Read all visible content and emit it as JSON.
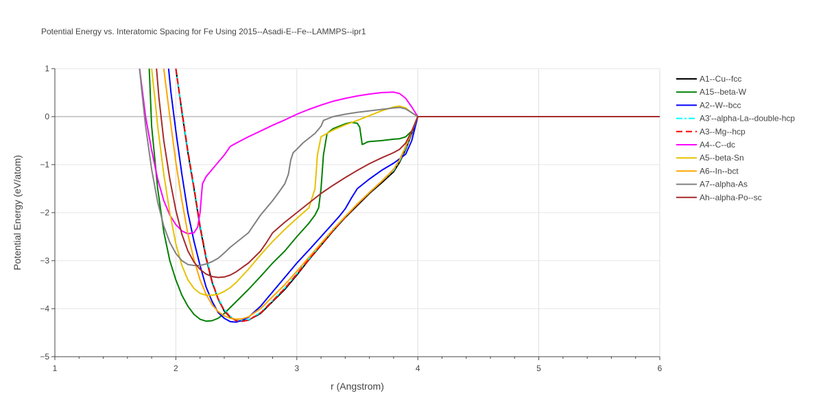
{
  "chart_data": {
    "type": "line",
    "title": "Potential Energy vs. Interatomic Spacing for Fe Using 2015--Asadi-E--Fe--LAMMPS--ipr1",
    "xlabel": "r (Angstrom)",
    "ylabel": "Potential Energy (eV/atom)",
    "xlim": [
      1,
      6
    ],
    "ylim": [
      -5,
      1
    ],
    "xticks": [
      1,
      2,
      3,
      4,
      5,
      6
    ],
    "yticks": [
      1,
      0,
      -1,
      -2,
      -3,
      -4,
      -5
    ],
    "xtick_labels": [
      "1",
      "2",
      "3",
      "4",
      "5",
      "6"
    ],
    "ytick_labels": [
      "1",
      "0",
      "−1",
      "−2",
      "−3",
      "−4",
      "−5"
    ],
    "grid": true,
    "legend_position": "right",
    "series": [
      {
        "name": "A1--Cu--fcc",
        "color": "#000000",
        "dash": "solid",
        "x": [
          2.0,
          2.05,
          2.1,
          2.15,
          2.2,
          2.25,
          2.3,
          2.35,
          2.4,
          2.45,
          2.5,
          2.55,
          2.6,
          2.7,
          2.8,
          2.9,
          3.0,
          3.1,
          3.2,
          3.3,
          3.4,
          3.5,
          3.6,
          3.7,
          3.8,
          3.85,
          3.9,
          3.95,
          4.0,
          4.5,
          5.0,
          5.5,
          6.0
        ],
        "y": [
          1.0,
          0.1,
          -0.75,
          -1.5,
          -2.3,
          -2.95,
          -3.45,
          -3.8,
          -4.05,
          -4.18,
          -4.25,
          -4.26,
          -4.24,
          -4.1,
          -3.85,
          -3.6,
          -3.3,
          -2.98,
          -2.68,
          -2.38,
          -2.1,
          -1.85,
          -1.6,
          -1.38,
          -1.15,
          -0.95,
          -0.68,
          -0.35,
          0.0,
          0.0,
          0.0,
          0.0,
          0.0
        ]
      },
      {
        "name": "A15--beta-W",
        "color": "#008000",
        "dash": "solid",
        "x": [
          1.78,
          1.8,
          1.85,
          1.9,
          1.95,
          2.0,
          2.05,
          2.1,
          2.15,
          2.2,
          2.25,
          2.3,
          2.35,
          2.4,
          2.5,
          2.6,
          2.7,
          2.8,
          2.9,
          3.0,
          3.1,
          3.15,
          3.18,
          3.2,
          3.22,
          3.25,
          3.3,
          3.35,
          3.4,
          3.45,
          3.5,
          3.52,
          3.54,
          3.56,
          3.58,
          3.6,
          3.7,
          3.8,
          3.85,
          3.9,
          3.95,
          4.0,
          4.5,
          5.0,
          5.5,
          6.0
        ],
        "y": [
          1.0,
          -0.2,
          -1.5,
          -2.4,
          -3.0,
          -3.4,
          -3.72,
          -3.95,
          -4.12,
          -4.22,
          -4.26,
          -4.25,
          -4.2,
          -4.1,
          -3.85,
          -3.6,
          -3.33,
          -3.05,
          -2.8,
          -2.5,
          -2.22,
          -2.05,
          -1.9,
          -1.5,
          -0.8,
          -0.35,
          -0.25,
          -0.2,
          -0.15,
          -0.12,
          -0.14,
          -0.22,
          -0.58,
          -0.56,
          -0.53,
          -0.52,
          -0.5,
          -0.47,
          -0.46,
          -0.42,
          -0.3,
          0.0,
          0.0,
          0.0,
          0.0,
          0.0
        ]
      },
      {
        "name": "A2--W--bcc",
        "color": "#0000ff",
        "dash": "solid",
        "x": [
          1.94,
          1.96,
          2.0,
          2.05,
          2.1,
          2.15,
          2.2,
          2.25,
          2.3,
          2.35,
          2.4,
          2.45,
          2.5,
          2.55,
          2.6,
          2.7,
          2.8,
          2.9,
          3.0,
          3.1,
          3.2,
          3.3,
          3.35,
          3.4,
          3.45,
          3.5,
          3.6,
          3.7,
          3.8,
          3.85,
          3.9,
          3.95,
          4.0,
          4.5,
          5.0,
          5.5,
          6.0
        ],
        "y": [
          1.0,
          0.5,
          -0.3,
          -1.2,
          -2.0,
          -2.6,
          -3.1,
          -3.55,
          -3.85,
          -4.08,
          -4.2,
          -4.27,
          -4.28,
          -4.24,
          -4.18,
          -3.95,
          -3.65,
          -3.35,
          -3.05,
          -2.78,
          -2.5,
          -2.22,
          -2.08,
          -1.92,
          -1.7,
          -1.5,
          -1.3,
          -1.12,
          -0.97,
          -0.88,
          -0.78,
          -0.5,
          0.0,
          0.0,
          0.0,
          0.0,
          0.0
        ]
      },
      {
        "name": "A3'--alpha-La--double-hcp",
        "color": "#00ffff",
        "dash": "dashdot",
        "x": [
          2.0,
          2.05,
          2.1,
          2.15,
          2.2,
          2.25,
          2.3,
          2.35,
          2.4,
          2.45,
          2.5,
          2.55,
          2.6,
          2.7,
          2.8,
          2.9,
          3.0,
          3.1,
          3.2,
          3.3,
          3.4,
          3.5,
          3.6,
          3.7,
          3.8,
          3.85,
          3.9,
          3.95,
          4.0,
          4.5,
          5.0,
          5.5,
          6.0
        ],
        "y": [
          1.0,
          0.15,
          -0.7,
          -1.45,
          -2.25,
          -2.9,
          -3.42,
          -3.78,
          -4.02,
          -4.16,
          -4.24,
          -4.25,
          -4.23,
          -4.08,
          -3.83,
          -3.57,
          -3.27,
          -2.96,
          -2.66,
          -2.36,
          -2.08,
          -1.82,
          -1.58,
          -1.35,
          -1.12,
          -0.92,
          -0.65,
          -0.33,
          0.0,
          0.0,
          0.0,
          0.0,
          0.0
        ]
      },
      {
        "name": "A3--Mg--hcp",
        "color": "#ff0000",
        "dash": "dash",
        "x": [
          2.0,
          2.05,
          2.1,
          2.15,
          2.2,
          2.25,
          2.3,
          2.35,
          2.4,
          2.45,
          2.5,
          2.55,
          2.6,
          2.7,
          2.8,
          2.9,
          3.0,
          3.1,
          3.2,
          3.3,
          3.4,
          3.5,
          3.6,
          3.7,
          3.8,
          3.85,
          3.9,
          3.95,
          4.0,
          4.5,
          5.0,
          5.5,
          6.0
        ],
        "y": [
          1.0,
          0.12,
          -0.72,
          -1.48,
          -2.28,
          -2.93,
          -3.44,
          -3.8,
          -4.04,
          -4.17,
          -4.25,
          -4.26,
          -4.24,
          -4.09,
          -3.84,
          -3.58,
          -3.28,
          -2.97,
          -2.67,
          -2.37,
          -2.09,
          -1.83,
          -1.58,
          -1.35,
          -1.1,
          -0.9,
          -0.62,
          -0.32,
          0.0,
          0.0,
          0.0,
          0.0,
          0.0
        ]
      },
      {
        "name": "A4--C--dc",
        "color": "#ff00ff",
        "dash": "solid",
        "x": [
          1.7,
          1.75,
          1.8,
          1.85,
          1.9,
          1.95,
          2.0,
          2.05,
          2.1,
          2.15,
          2.18,
          2.2,
          2.22,
          2.25,
          2.3,
          2.35,
          2.4,
          2.45,
          2.5,
          2.6,
          2.7,
          2.8,
          2.9,
          3.0,
          3.1,
          3.2,
          3.3,
          3.4,
          3.5,
          3.6,
          3.7,
          3.8,
          3.85,
          3.9,
          3.95,
          4.0,
          4.5,
          5.0,
          5.5,
          6.0
        ],
        "y": [
          1.0,
          0.0,
          -0.7,
          -1.3,
          -1.75,
          -2.05,
          -2.25,
          -2.38,
          -2.44,
          -2.42,
          -2.3,
          -2.0,
          -1.4,
          -1.25,
          -1.1,
          -0.95,
          -0.8,
          -0.62,
          -0.55,
          -0.42,
          -0.3,
          -0.18,
          -0.07,
          0.05,
          0.15,
          0.24,
          0.32,
          0.38,
          0.43,
          0.47,
          0.5,
          0.51,
          0.48,
          0.38,
          0.2,
          0.0,
          0.0,
          0.0,
          0.0,
          0.0
        ]
      },
      {
        "name": "A5--beta-Sn",
        "color": "#e6c200",
        "dash": "solid",
        "x": [
          1.8,
          1.83,
          1.85,
          1.9,
          1.95,
          2.0,
          2.05,
          2.1,
          2.15,
          2.2,
          2.25,
          2.3,
          2.35,
          2.4,
          2.45,
          2.5,
          2.6,
          2.7,
          2.8,
          2.9,
          3.0,
          3.1,
          3.15,
          3.17,
          3.2,
          3.3,
          3.4,
          3.5,
          3.6,
          3.7,
          3.8,
          3.85,
          3.9,
          3.95,
          4.0,
          4.5,
          5.0,
          5.5,
          6.0
        ],
        "y": [
          1.0,
          0.3,
          -0.2,
          -1.2,
          -2.0,
          -2.65,
          -3.1,
          -3.4,
          -3.58,
          -3.68,
          -3.72,
          -3.72,
          -3.7,
          -3.64,
          -3.56,
          -3.45,
          -3.18,
          -2.88,
          -2.6,
          -2.35,
          -2.12,
          -1.9,
          -1.5,
          -0.8,
          -0.42,
          -0.28,
          -0.17,
          -0.08,
          0.02,
          0.12,
          0.2,
          0.22,
          0.18,
          0.08,
          0.0,
          0.0,
          0.0,
          0.0,
          0.0
        ]
      },
      {
        "name": "A6--In--bct",
        "color": "#ffa500",
        "dash": "solid",
        "x": [
          1.9,
          1.95,
          2.0,
          2.05,
          2.1,
          2.15,
          2.2,
          2.25,
          2.3,
          2.35,
          2.4,
          2.45,
          2.5,
          2.55,
          2.6,
          2.7,
          2.8,
          2.9,
          3.0,
          3.1,
          3.2,
          3.3,
          3.4,
          3.5,
          3.6,
          3.7,
          3.8,
          3.85,
          3.9,
          3.95,
          4.0,
          4.5,
          5.0,
          5.5,
          6.0
        ],
        "y": [
          1.0,
          0.0,
          -0.95,
          -1.75,
          -2.45,
          -2.98,
          -3.4,
          -3.7,
          -3.92,
          -4.06,
          -4.15,
          -4.2,
          -4.22,
          -4.21,
          -4.17,
          -4.0,
          -3.75,
          -3.5,
          -3.22,
          -2.93,
          -2.64,
          -2.35,
          -2.08,
          -1.82,
          -1.58,
          -1.35,
          -1.1,
          -0.9,
          -0.62,
          -0.3,
          0.0,
          0.0,
          0.0,
          0.0,
          0.0
        ]
      },
      {
        "name": "A7--alpha-As",
        "color": "#808080",
        "dash": "solid",
        "x": [
          1.7,
          1.72,
          1.75,
          1.8,
          1.85,
          1.9,
          1.95,
          2.0,
          2.05,
          2.1,
          2.15,
          2.2,
          2.25,
          2.3,
          2.35,
          2.4,
          2.45,
          2.5,
          2.6,
          2.7,
          2.8,
          2.85,
          2.9,
          2.93,
          2.95,
          2.97,
          3.0,
          3.05,
          3.1,
          3.15,
          3.2,
          3.22,
          3.3,
          3.4,
          3.5,
          3.6,
          3.7,
          3.8,
          3.85,
          3.9,
          3.95,
          4.0,
          4.5,
          5.0,
          5.5,
          6.0
        ],
        "y": [
          1.0,
          0.5,
          -0.2,
          -1.1,
          -1.78,
          -2.28,
          -2.62,
          -2.85,
          -3.0,
          -3.08,
          -3.1,
          -3.1,
          -3.07,
          -3.02,
          -2.95,
          -2.84,
          -2.72,
          -2.62,
          -2.42,
          -2.05,
          -1.75,
          -1.58,
          -1.4,
          -1.2,
          -0.9,
          -0.75,
          -0.68,
          -0.55,
          -0.45,
          -0.35,
          -0.2,
          -0.08,
          0.0,
          0.05,
          0.09,
          0.12,
          0.15,
          0.18,
          0.19,
          0.16,
          0.08,
          0.0,
          0.0,
          0.0,
          0.0,
          0.0
        ]
      },
      {
        "name": "Ah--alpha-Po--sc",
        "color": "#a52a2a",
        "dash": "solid",
        "x": [
          1.84,
          1.86,
          1.9,
          1.95,
          2.0,
          2.05,
          2.1,
          2.15,
          2.2,
          2.25,
          2.3,
          2.35,
          2.4,
          2.45,
          2.5,
          2.6,
          2.7,
          2.75,
          2.8,
          2.9,
          3.0,
          3.1,
          3.2,
          3.3,
          3.4,
          3.5,
          3.6,
          3.7,
          3.8,
          3.85,
          3.9,
          3.95,
          4.0,
          4.5,
          5.0,
          5.5,
          6.0
        ],
        "y": [
          1.0,
          0.4,
          -0.5,
          -1.3,
          -1.95,
          -2.45,
          -2.8,
          -3.03,
          -3.18,
          -3.28,
          -3.33,
          -3.35,
          -3.34,
          -3.3,
          -3.23,
          -3.05,
          -2.8,
          -2.62,
          -2.42,
          -2.2,
          -2.0,
          -1.8,
          -1.6,
          -1.43,
          -1.27,
          -1.12,
          -0.98,
          -0.86,
          -0.75,
          -0.68,
          -0.55,
          -0.3,
          0.0,
          0.0,
          0.0,
          0.0,
          0.0
        ]
      }
    ]
  }
}
